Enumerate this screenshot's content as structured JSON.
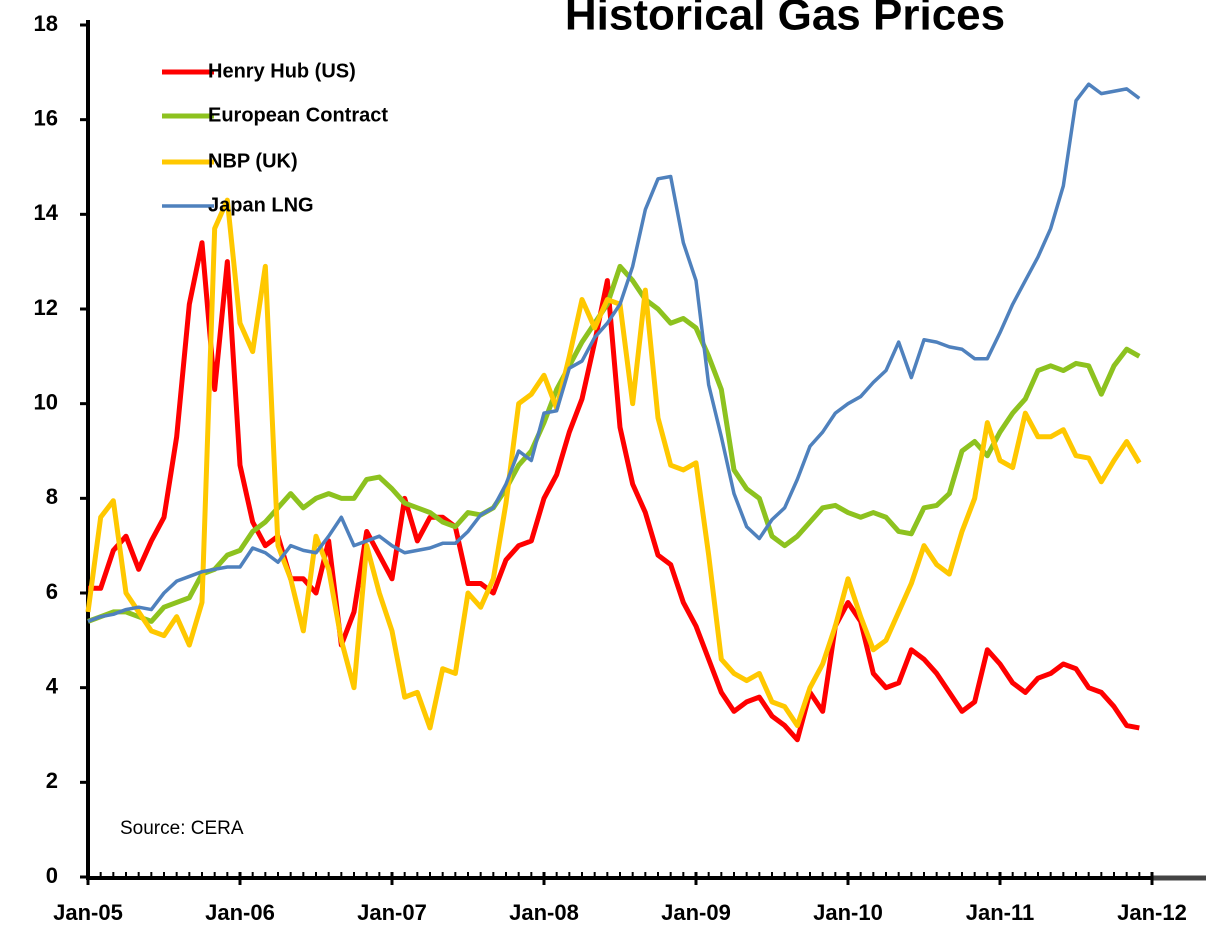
{
  "chart_data": {
    "type": "line",
    "title": "Historical Gas Prices",
    "annotation": "Source: CERA",
    "categories": [
      "Jan-05",
      null,
      null,
      null,
      null,
      null,
      null,
      null,
      null,
      null,
      null,
      null,
      "Jan-06",
      null,
      null,
      null,
      null,
      null,
      null,
      null,
      null,
      null,
      null,
      null,
      "Jan-07",
      null,
      null,
      null,
      null,
      null,
      null,
      null,
      null,
      null,
      null,
      null,
      "Jan-08",
      null,
      null,
      null,
      null,
      null,
      null,
      null,
      null,
      null,
      null,
      null,
      "Jan-09",
      null,
      null,
      null,
      null,
      null,
      null,
      null,
      null,
      null,
      null,
      null,
      "Jan-10",
      null,
      null,
      null,
      null,
      null,
      null,
      null,
      null,
      null,
      null,
      null,
      "Jan-11",
      null,
      null,
      null,
      null,
      null,
      null,
      null,
      null,
      null,
      null,
      null,
      "Jan-12"
    ],
    "series": [
      {
        "name": "Henry Hub (US)",
        "color": "#ff0000",
        "values": [
          6.1,
          6.1,
          6.9,
          7.2,
          6.5,
          7.1,
          7.6,
          9.3,
          12.1,
          13.4,
          10.3,
          13.0,
          8.7,
          7.5,
          7.0,
          7.2,
          6.3,
          6.3,
          6.0,
          7.1,
          4.9,
          5.6,
          7.3,
          6.8,
          6.3,
          8.0,
          7.1,
          7.6,
          7.6,
          7.4,
          6.2,
          6.2,
          6.0,
          6.7,
          7.0,
          7.1,
          8.0,
          8.5,
          9.4,
          10.1,
          11.3,
          12.6,
          9.5,
          8.3,
          7.7,
          6.8,
          6.6,
          5.8,
          5.3,
          4.6,
          3.9,
          3.5,
          3.7,
          3.8,
          3.4,
          3.2,
          2.9,
          3.9,
          3.5,
          5.3,
          5.8,
          5.4,
          4.3,
          4.0,
          4.1,
          4.8,
          4.6,
          4.3,
          3.9,
          3.5,
          3.7,
          4.8,
          4.5,
          4.1,
          3.9,
          4.2,
          4.3,
          4.5,
          4.4,
          4.0,
          3.9,
          3.6,
          3.2,
          3.15,
          null
        ]
      },
      {
        "name": "European Contract",
        "color": "#8dc21f",
        "values": [
          5.4,
          5.5,
          5.6,
          5.6,
          5.5,
          5.4,
          5.7,
          5.8,
          5.9,
          6.4,
          6.5,
          6.8,
          6.9,
          7.3,
          7.5,
          7.8,
          8.1,
          7.8,
          8.0,
          8.1,
          8.0,
          8.0,
          8.4,
          8.45,
          8.2,
          7.9,
          7.8,
          7.7,
          7.5,
          7.4,
          7.7,
          7.65,
          7.8,
          8.2,
          8.7,
          9.0,
          9.6,
          10.3,
          10.8,
          11.3,
          11.7,
          12.1,
          12.9,
          12.6,
          12.2,
          12.0,
          11.7,
          11.8,
          11.6,
          11.0,
          10.3,
          8.6,
          8.2,
          8.0,
          7.2,
          7.0,
          7.2,
          7.5,
          7.8,
          7.85,
          7.7,
          7.6,
          7.7,
          7.6,
          7.3,
          7.25,
          7.8,
          7.85,
          8.1,
          9.0,
          9.2,
          8.9,
          9.4,
          9.8,
          10.1,
          10.7,
          10.8,
          10.7,
          10.85,
          10.8,
          10.2,
          10.8,
          11.15,
          11.0,
          null
        ]
      },
      {
        "name": "NBP (UK)",
        "color": "#ffc800",
        "values": [
          5.6,
          7.6,
          7.95,
          6.0,
          5.6,
          5.2,
          5.1,
          5.5,
          4.9,
          5.8,
          13.7,
          14.3,
          11.7,
          11.1,
          12.9,
          7.0,
          6.3,
          5.2,
          7.2,
          6.5,
          5.0,
          4.0,
          7.0,
          6.0,
          5.2,
          3.8,
          3.9,
          3.15,
          4.4,
          4.3,
          6.0,
          5.7,
          6.3,
          7.9,
          10.0,
          10.2,
          10.6,
          9.9,
          11.0,
          12.2,
          11.6,
          12.2,
          12.1,
          10.0,
          12.4,
          9.7,
          8.7,
          8.6,
          8.75,
          6.8,
          4.6,
          4.3,
          4.15,
          4.3,
          3.7,
          3.6,
          3.2,
          4.0,
          4.5,
          5.3,
          6.3,
          5.5,
          4.8,
          5.0,
          5.6,
          6.2,
          7.0,
          6.6,
          6.4,
          7.3,
          8.0,
          9.6,
          8.8,
          8.65,
          9.8,
          9.3,
          9.3,
          9.45,
          8.9,
          8.85,
          8.35,
          8.8,
          9.2,
          8.75,
          null
        ]
      },
      {
        "name": "Japan LNG",
        "color": "#4f81bd",
        "values": [
          5.4,
          5.5,
          5.55,
          5.65,
          5.7,
          5.65,
          6.0,
          6.25,
          6.35,
          6.45,
          6.5,
          6.55,
          6.55,
          6.95,
          6.85,
          6.65,
          7.0,
          6.9,
          6.85,
          7.2,
          7.6,
          7.0,
          7.1,
          7.2,
          7.0,
          6.85,
          6.9,
          6.95,
          7.05,
          7.05,
          7.3,
          7.65,
          7.8,
          8.3,
          9.0,
          8.8,
          9.8,
          9.85,
          10.75,
          10.9,
          11.4,
          11.7,
          12.1,
          12.9,
          14.1,
          14.75,
          14.8,
          13.4,
          12.6,
          10.4,
          9.3,
          8.1,
          7.4,
          7.15,
          7.55,
          7.8,
          8.4,
          9.1,
          9.4,
          9.8,
          10.0,
          10.15,
          10.45,
          10.7,
          11.3,
          10.55,
          11.35,
          11.3,
          11.2,
          11.15,
          10.95,
          10.95,
          11.5,
          12.1,
          12.6,
          13.1,
          13.7,
          14.6,
          16.4,
          16.75,
          16.55,
          16.6,
          16.65,
          16.45,
          null
        ]
      }
    ],
    "ylim": [
      0,
      18
    ],
    "yticks": [
      0,
      2,
      4,
      6,
      8,
      10,
      12,
      14,
      16,
      18
    ],
    "grid": false,
    "legend": "upper left"
  }
}
